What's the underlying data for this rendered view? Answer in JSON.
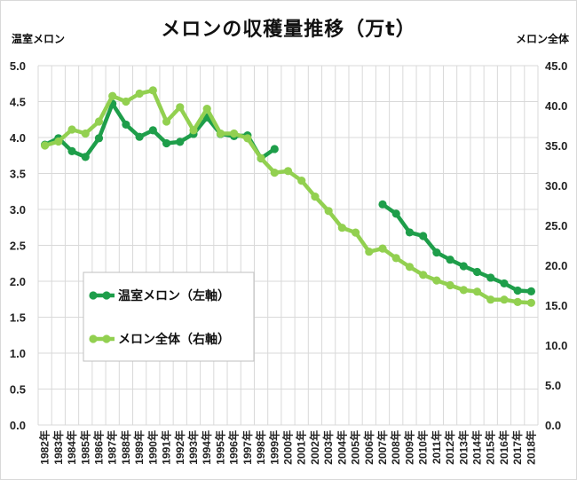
{
  "chart_data": {
    "type": "line",
    "title": "メロンの収穫量推移（万t）",
    "ylabel_left": "温室メロン",
    "ylabel_right": "メロン全体",
    "ylim_left": [
      0,
      5
    ],
    "ylim_right": [
      0,
      45
    ],
    "yticks_left": [
      "0.0",
      "0.5",
      "1.0",
      "1.5",
      "2.0",
      "2.5",
      "3.0",
      "3.5",
      "4.0",
      "4.5",
      "5.0"
    ],
    "yticks_right": [
      "0.0",
      "5.0",
      "10.0",
      "15.0",
      "20.0",
      "25.0",
      "30.0",
      "35.0",
      "40.0",
      "45.0"
    ],
    "grid": true,
    "legend_position": "lower-left",
    "categories": [
      "1982年",
      "1983年",
      "1984年",
      "1985年",
      "1986年",
      "1987年",
      "1988年",
      "1989年",
      "1990年",
      "1991年",
      "1992年",
      "1993年",
      "1994年",
      "1995年",
      "1996年",
      "1997年",
      "1998年",
      "1999年",
      "2000年",
      "2001年",
      "2002年",
      "2003年",
      "2004年",
      "2005年",
      "2006年",
      "2007年",
      "2008年",
      "2009年",
      "2010年",
      "2011年",
      "2012年",
      "2013年",
      "2014年",
      "2015年",
      "2016年",
      "2017年",
      "2018年"
    ],
    "series": [
      {
        "name": "温室メロン（左軸）",
        "axis": "left",
        "color": "#1e9e4a",
        "values": [
          3.9,
          3.99,
          3.81,
          3.73,
          3.99,
          4.47,
          4.18,
          4.01,
          4.1,
          3.92,
          3.94,
          4.05,
          4.28,
          4.05,
          4.02,
          4.03,
          3.71,
          3.84,
          null,
          null,
          null,
          null,
          null,
          null,
          null,
          3.07,
          2.94,
          2.68,
          2.63,
          2.4,
          2.3,
          2.21,
          2.13,
          2.05,
          1.97,
          1.87,
          1.86
        ]
      },
      {
        "name": "メロン全体（右軸）",
        "axis": "right",
        "color": "#92d050",
        "values": [
          35.0,
          35.5,
          37.0,
          36.5,
          38.0,
          41.2,
          40.5,
          41.5,
          41.9,
          38.0,
          39.8,
          36.9,
          39.6,
          36.5,
          36.5,
          35.9,
          33.4,
          31.6,
          31.8,
          30.6,
          28.6,
          26.8,
          24.7,
          24.1,
          21.7,
          22.1,
          20.9,
          19.8,
          18.8,
          18.1,
          17.5,
          16.9,
          16.7,
          15.7,
          15.7,
          15.4,
          15.3
        ]
      }
    ]
  }
}
